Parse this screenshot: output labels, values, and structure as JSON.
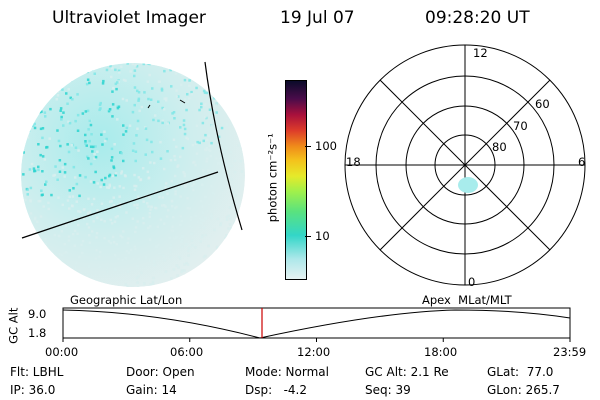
{
  "header": {
    "title": "Ultraviolet Imager",
    "date": "19 Jul 07",
    "time": "09:28:20 UT"
  },
  "colorbar": {
    "unit_label": "photon cm⁻²s⁻¹",
    "ticks": [
      "100",
      "10"
    ]
  },
  "polar": {
    "mlt_labels": {
      "top": "12",
      "left": "18",
      "right": "6",
      "bottom": "0"
    },
    "lat_labels": [
      "60",
      "70",
      "80"
    ]
  },
  "timeline": {
    "left_title": "Geographic Lat/Lon",
    "right_title": "Apex  MLat/MLT",
    "y_axis_label": "GC Alt",
    "y_ticks": [
      "9.0",
      "1.8"
    ],
    "x_ticks": [
      "00:00",
      "06:00",
      "12:00",
      "18:00",
      "23:59"
    ],
    "marker_time": "09:28:20"
  },
  "info": {
    "flt": "Flt: LBHL",
    "ip": "IP: 36.0",
    "door": "Door: Open",
    "gain": "Gain: 14",
    "mode": "Mode: Normal",
    "dsp": "Dsp:   -4.2",
    "gc_alt": "GC Alt: 2.1 Re",
    "seq": "Seq: 39",
    "glat": "GLat:  77.0",
    "glon": "GLon: 265.7"
  },
  "colors": {
    "emission_cyan": "#7fe6e6",
    "emission_dark": "#2bd3cf",
    "emission_pale": "#d8eeee",
    "marker_red": "#cc0000"
  }
}
